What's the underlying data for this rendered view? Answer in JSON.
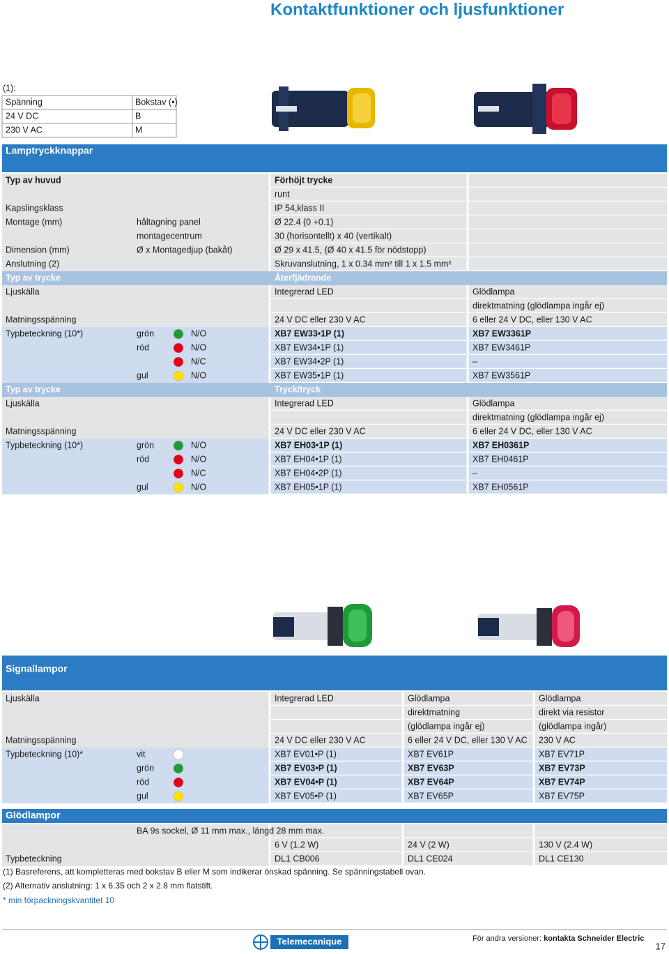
{
  "title": "Kontaktfunktioner och ljusfunktioner",
  "voltage_table": {
    "caption": "(1):",
    "header": [
      "Spänning",
      "Bokstav (•)"
    ],
    "rows": [
      [
        "24 V DC",
        "B"
      ],
      [
        "230 V AC",
        "M"
      ]
    ]
  },
  "lamp_buttons": {
    "header": "Lamptryckknappar",
    "rows": [
      {
        "style": "head",
        "cells": [
          "Typ av huvud",
          null,
          null,
          "Förhöjt trycke",
          null
        ]
      },
      {
        "cells": [
          null,
          null,
          null,
          "runt",
          null
        ]
      },
      {
        "cells": [
          "Kapslingsklass",
          null,
          null,
          "IP 54,klass II",
          null
        ]
      },
      {
        "cells": [
          "Montage (mm)",
          "håltagning panel",
          null,
          "Ø 22.4 (0 +0.1)",
          null
        ]
      },
      {
        "cells": [
          null,
          "montagecentrum",
          null,
          "30 (horisontellt) x 40 (vertikalt)",
          null
        ]
      },
      {
        "cells": [
          "Dimension (mm)",
          "Ø x Montagedjup (bakåt)",
          null,
          "Ø 29 x 41.5, (Ø 40 x 41.5 för nödstopp)",
          null
        ]
      },
      {
        "cells": [
          "Anslutning (2)",
          null,
          null,
          "Skruvanslutning, 1 x 0.34 mm² till 1 x 1.5 mm²",
          null
        ]
      },
      {
        "style": "sub",
        "cells": [
          "Typ av trycke",
          null,
          null,
          "Återfjädrande",
          null
        ]
      },
      {
        "cells": [
          "Ljuskälla",
          null,
          null,
          "Integrerad LED",
          "Glödlampa"
        ]
      },
      {
        "cells": [
          null,
          null,
          null,
          null,
          "direktmatning (glödlampa ingår ej)"
        ]
      },
      {
        "cells": [
          "Matningsspänning",
          null,
          null,
          "24 V DC eller 230 V AC",
          "6 eller 24 V DC, eller 130 V AC"
        ]
      },
      {
        "style": "type",
        "light": "#1f9a3a",
        "bold": true,
        "cells": [
          "Typbeteckning (10*)",
          "grön",
          "N/O",
          "XB7 EW33•1P (1)",
          "XB7 EW3361P"
        ]
      },
      {
        "style": "type",
        "light": "#e3001b",
        "cells": [
          null,
          "röd",
          "N/O",
          "XB7 EW34•1P (1)",
          "XB7 EW3461P"
        ]
      },
      {
        "style": "type",
        "light": "#e3001b",
        "cells": [
          null,
          null,
          "N/C",
          "XB7 EW34•2P (1)",
          "–"
        ]
      },
      {
        "style": "type",
        "light": "#ffe000",
        "cells": [
          null,
          "gul",
          "N/O",
          "XB7 EW35•1P (1)",
          "XB7 EW3561P"
        ]
      },
      {
        "style": "sub",
        "cells": [
          "Typ av trycke",
          null,
          null,
          "Tryck/tryck",
          null
        ]
      },
      {
        "cells": [
          "Ljuskälla",
          null,
          null,
          "Integrerad LED",
          "Glödlampa"
        ]
      },
      {
        "cells": [
          null,
          null,
          null,
          null,
          "direktmatning (glödlampa ingår ej)"
        ]
      },
      {
        "cells": [
          "Matningsspänning",
          null,
          null,
          "24 V DC eller 230 V AC",
          "6 eller 24 V DC, eller 130 V AC"
        ]
      },
      {
        "style": "type",
        "light": "#1f9a3a",
        "bold": true,
        "cells": [
          "Typbeteckning (10*)",
          "grön",
          "N/O",
          "XB7 EH03•1P (1)",
          "XB7 EH0361P"
        ]
      },
      {
        "style": "type",
        "light": "#e3001b",
        "cells": [
          null,
          "röd",
          "N/O",
          "XB7 EH04•1P (1)",
          "XB7 EH0461P"
        ]
      },
      {
        "style": "type",
        "light": "#e3001b",
        "cells": [
          null,
          null,
          "N/C",
          "XB7 EH04•2P (1)",
          "–"
        ]
      },
      {
        "style": "type",
        "light": "#ffe000",
        "cells": [
          null,
          "gul",
          "N/O",
          "XB7 EH05•1P (1)",
          "XB7 EH0561P"
        ]
      }
    ]
  },
  "signal_lamps": {
    "header": "Signallampor",
    "rows": [
      {
        "cells": [
          "Ljuskälla",
          null,
          "Integrerad LED",
          "Glödlampa",
          "Glödlampa"
        ]
      },
      {
        "cells": [
          null,
          null,
          null,
          "direktmatning",
          "direkt via resistor"
        ]
      },
      {
        "cells": [
          null,
          null,
          null,
          "(glödlampa ingår ej)",
          "(glödlampa ingår)"
        ]
      },
      {
        "cells": [
          "Matningsspänning",
          null,
          "24 V DC eller 230 V AC",
          "6 eller 24 V DC, eller 130 V AC",
          "230 V AC"
        ]
      },
      {
        "style": "type",
        "light": "#ffffff",
        "cells": [
          "Typbeteckning (10)*",
          "vit",
          "XB7 EV01•P (1)",
          "XB7 EV61P",
          "XB7 EV71P"
        ]
      },
      {
        "style": "type",
        "light": "#1f9a3a",
        "bold": true,
        "cells": [
          null,
          "grön",
          "XB7 EV03•P (1)",
          "XB7 EV63P",
          "XB7 EV73P"
        ]
      },
      {
        "style": "type",
        "light": "#e3001b",
        "bold": true,
        "cells": [
          null,
          "röd",
          "XB7 EV04•P (1)",
          "XB7 EV64P",
          "XB7 EV74P"
        ]
      },
      {
        "style": "type",
        "light": "#ffe000",
        "cells": [
          null,
          "gul",
          "XB7 EV05•P (1)",
          "XB7 EV65P",
          "XB7 EV75P"
        ]
      }
    ]
  },
  "bulbs": {
    "header": "Glödlampor",
    "rows": [
      {
        "cells": [
          null,
          "BA 9s sockel, Ø 11 mm max., längd 28 mm max.",
          null,
          null,
          null
        ]
      },
      {
        "cells": [
          null,
          null,
          "6 V (1.2 W)",
          "24 V (2 W)",
          "130 V (2.4 W)"
        ]
      },
      {
        "cells": [
          "Typbeteckning",
          null,
          "DL1 CB006",
          "DL1 CE024",
          "DL1 CE130"
        ]
      }
    ]
  },
  "footnotes": [
    "(1) Basreferens, att kompletteras med bokstav B eller M som indikerar önskad spänning. Se spänningstabell ovan.",
    "(2) Alternativ anslutning: 1 x 6.35 och 2 x 2.8 mm flatstift."
  ],
  "note": "* min förpackningskvantitet 10",
  "footer": {
    "brand": "Telemecanique",
    "contact_prefix": "För andra versioner:",
    "contact": "kontakta Schneider Electric",
    "page": 17
  }
}
